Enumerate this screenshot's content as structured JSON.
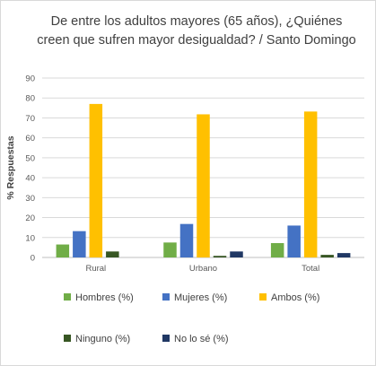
{
  "chart_data": {
    "type": "bar",
    "title": "De entre los adultos mayores (65 años), ¿Quiénes creen que sufren mayor desigualdad? / Santo Domingo",
    "title_lines": [
      "De entre los adultos mayores (65 años), ¿Quiénes",
      "creen que sufren mayor desigualdad? / Santo Domingo"
    ],
    "xlabel": "",
    "ylabel": "% Respuestas",
    "ylim": [
      0,
      90
    ],
    "yticks": [
      "0",
      "10",
      "20",
      "30",
      "40",
      "50",
      "60",
      "70",
      "80",
      "90"
    ],
    "grid": true,
    "legend_position": "bottom",
    "categories": [
      "Rural",
      "Urbano",
      "Total"
    ],
    "series": [
      {
        "name": "Hombres (%)",
        "color": "#70ad47",
        "values": [
          6.5,
          7.5,
          7.2
        ]
      },
      {
        "name": "Mujeres (%)",
        "color": "#4472c4",
        "values": [
          13.2,
          16.8,
          16.0
        ]
      },
      {
        "name": "Ambos (%)",
        "color": "#ffc000",
        "values": [
          77.0,
          71.8,
          73.2
        ]
      },
      {
        "name": "Ninguno (%)",
        "color": "#375623",
        "values": [
          3.0,
          0.8,
          1.3
        ]
      },
      {
        "name": "No lo sé (%)",
        "color": "#203864",
        "values": [
          0.0,
          3.0,
          2.2
        ]
      }
    ]
  }
}
